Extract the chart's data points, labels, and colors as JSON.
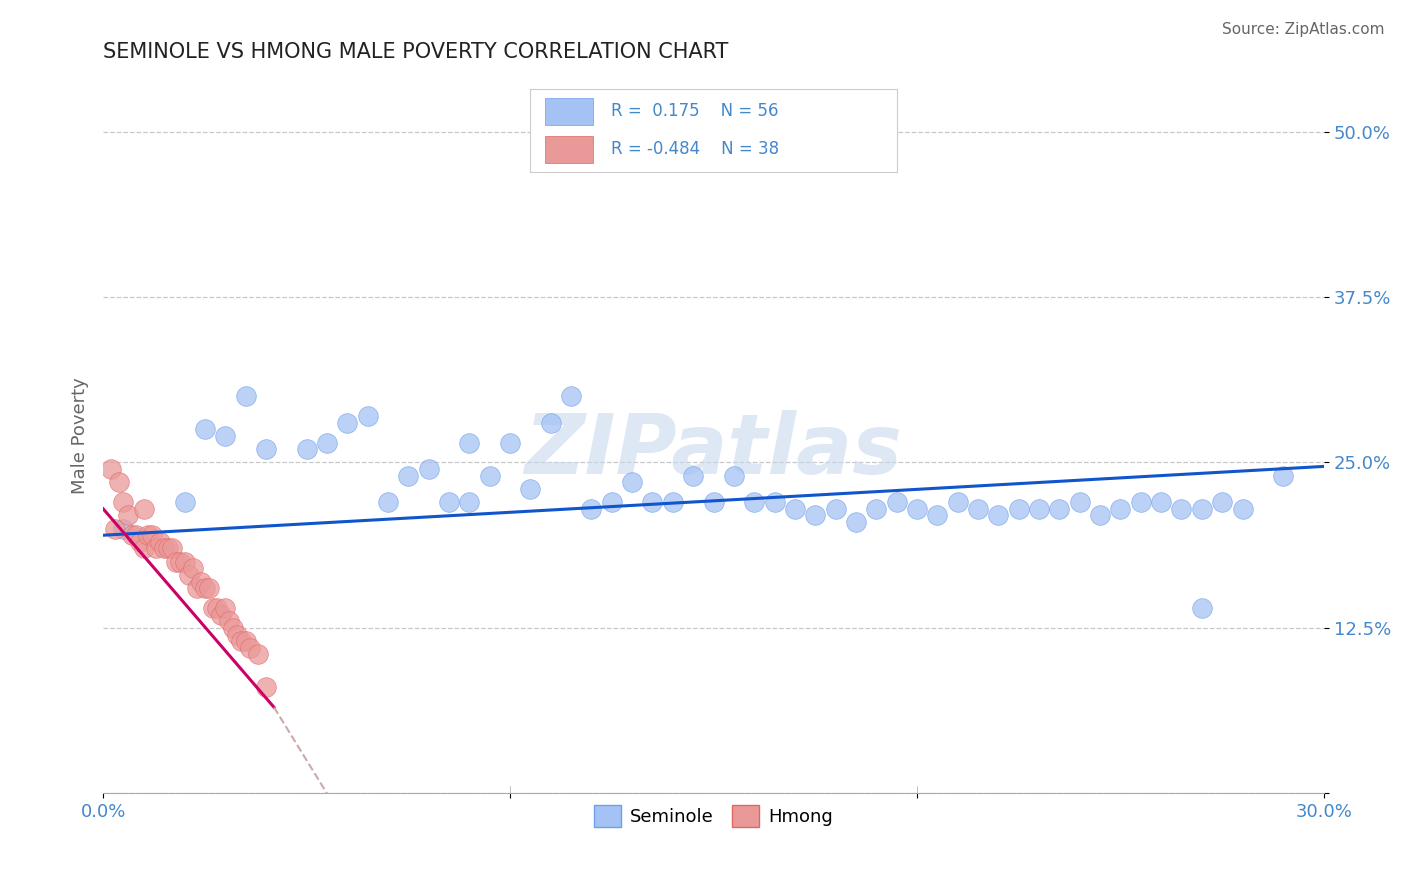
{
  "title": "SEMINOLE VS HMONG MALE POVERTY CORRELATION CHART",
  "source": "Source: ZipAtlas.com",
  "ylabel": "Male Poverty",
  "xlim": [
    0.0,
    0.3
  ],
  "ylim": [
    0.0,
    0.54
  ],
  "seminole_color": "#a4c2f4",
  "hmong_color": "#ea9999",
  "seminole_edge_color": "#6d9eeb",
  "hmong_edge_color": "#e06666",
  "seminole_line_color": "#1155cc",
  "hmong_line_color": "#cc0066",
  "hmong_line_dashed_color": "#ccaaaa",
  "background_color": "#ffffff",
  "watermark": "ZIPatlas",
  "watermark_color": "#c8d8ee",
  "watermark_alpha": 0.6,
  "grid_color": "#bbbbbb",
  "title_color": "#222222",
  "axis_label_color": "#666666",
  "tick_label_color": "#4488cc",
  "legend_R1": "0.175",
  "legend_N1": "56",
  "legend_R2": "-0.484",
  "legend_N2": "38",
  "seminole_x": [
    0.005,
    0.02,
    0.025,
    0.03,
    0.035,
    0.04,
    0.05,
    0.055,
    0.06,
    0.065,
    0.07,
    0.075,
    0.08,
    0.085,
    0.09,
    0.09,
    0.095,
    0.1,
    0.105,
    0.11,
    0.115,
    0.12,
    0.125,
    0.13,
    0.135,
    0.14,
    0.145,
    0.15,
    0.155,
    0.16,
    0.165,
    0.17,
    0.175,
    0.18,
    0.185,
    0.19,
    0.195,
    0.2,
    0.205,
    0.21,
    0.215,
    0.22,
    0.225,
    0.23,
    0.235,
    0.24,
    0.245,
    0.25,
    0.255,
    0.26,
    0.265,
    0.27,
    0.275,
    0.28,
    0.29,
    0.27
  ],
  "seminole_y": [
    0.2,
    0.22,
    0.275,
    0.27,
    0.3,
    0.26,
    0.26,
    0.265,
    0.28,
    0.285,
    0.22,
    0.24,
    0.245,
    0.22,
    0.265,
    0.22,
    0.24,
    0.265,
    0.23,
    0.28,
    0.3,
    0.215,
    0.22,
    0.235,
    0.22,
    0.22,
    0.24,
    0.22,
    0.24,
    0.22,
    0.22,
    0.215,
    0.21,
    0.215,
    0.205,
    0.215,
    0.22,
    0.215,
    0.21,
    0.22,
    0.215,
    0.21,
    0.215,
    0.215,
    0.215,
    0.22,
    0.21,
    0.215,
    0.22,
    0.22,
    0.215,
    0.215,
    0.22,
    0.215,
    0.24,
    0.14
  ],
  "hmong_x": [
    0.002,
    0.003,
    0.004,
    0.005,
    0.006,
    0.007,
    0.008,
    0.009,
    0.01,
    0.01,
    0.011,
    0.012,
    0.013,
    0.014,
    0.015,
    0.016,
    0.017,
    0.018,
    0.019,
    0.02,
    0.021,
    0.022,
    0.023,
    0.024,
    0.025,
    0.026,
    0.027,
    0.028,
    0.029,
    0.03,
    0.031,
    0.032,
    0.033,
    0.034,
    0.035,
    0.036,
    0.038,
    0.04
  ],
  "hmong_y": [
    0.245,
    0.2,
    0.235,
    0.22,
    0.21,
    0.195,
    0.195,
    0.19,
    0.215,
    0.185,
    0.195,
    0.195,
    0.185,
    0.19,
    0.185,
    0.185,
    0.185,
    0.175,
    0.175,
    0.175,
    0.165,
    0.17,
    0.155,
    0.16,
    0.155,
    0.155,
    0.14,
    0.14,
    0.135,
    0.14,
    0.13,
    0.125,
    0.12,
    0.115,
    0.115,
    0.11,
    0.105,
    0.08
  ],
  "sem_line_x0": 0.0,
  "sem_line_y0": 0.195,
  "sem_line_x1": 0.3,
  "sem_line_y1": 0.247,
  "hmong_line_x0": 0.0,
  "hmong_line_y0": 0.215,
  "hmong_line_x1": 0.042,
  "hmong_line_y1": 0.065,
  "hmong_line_dash_x0": 0.042,
  "hmong_line_dash_y0": 0.065,
  "hmong_line_dash_x1": 0.055,
  "hmong_line_dash_y1": 0.0
}
